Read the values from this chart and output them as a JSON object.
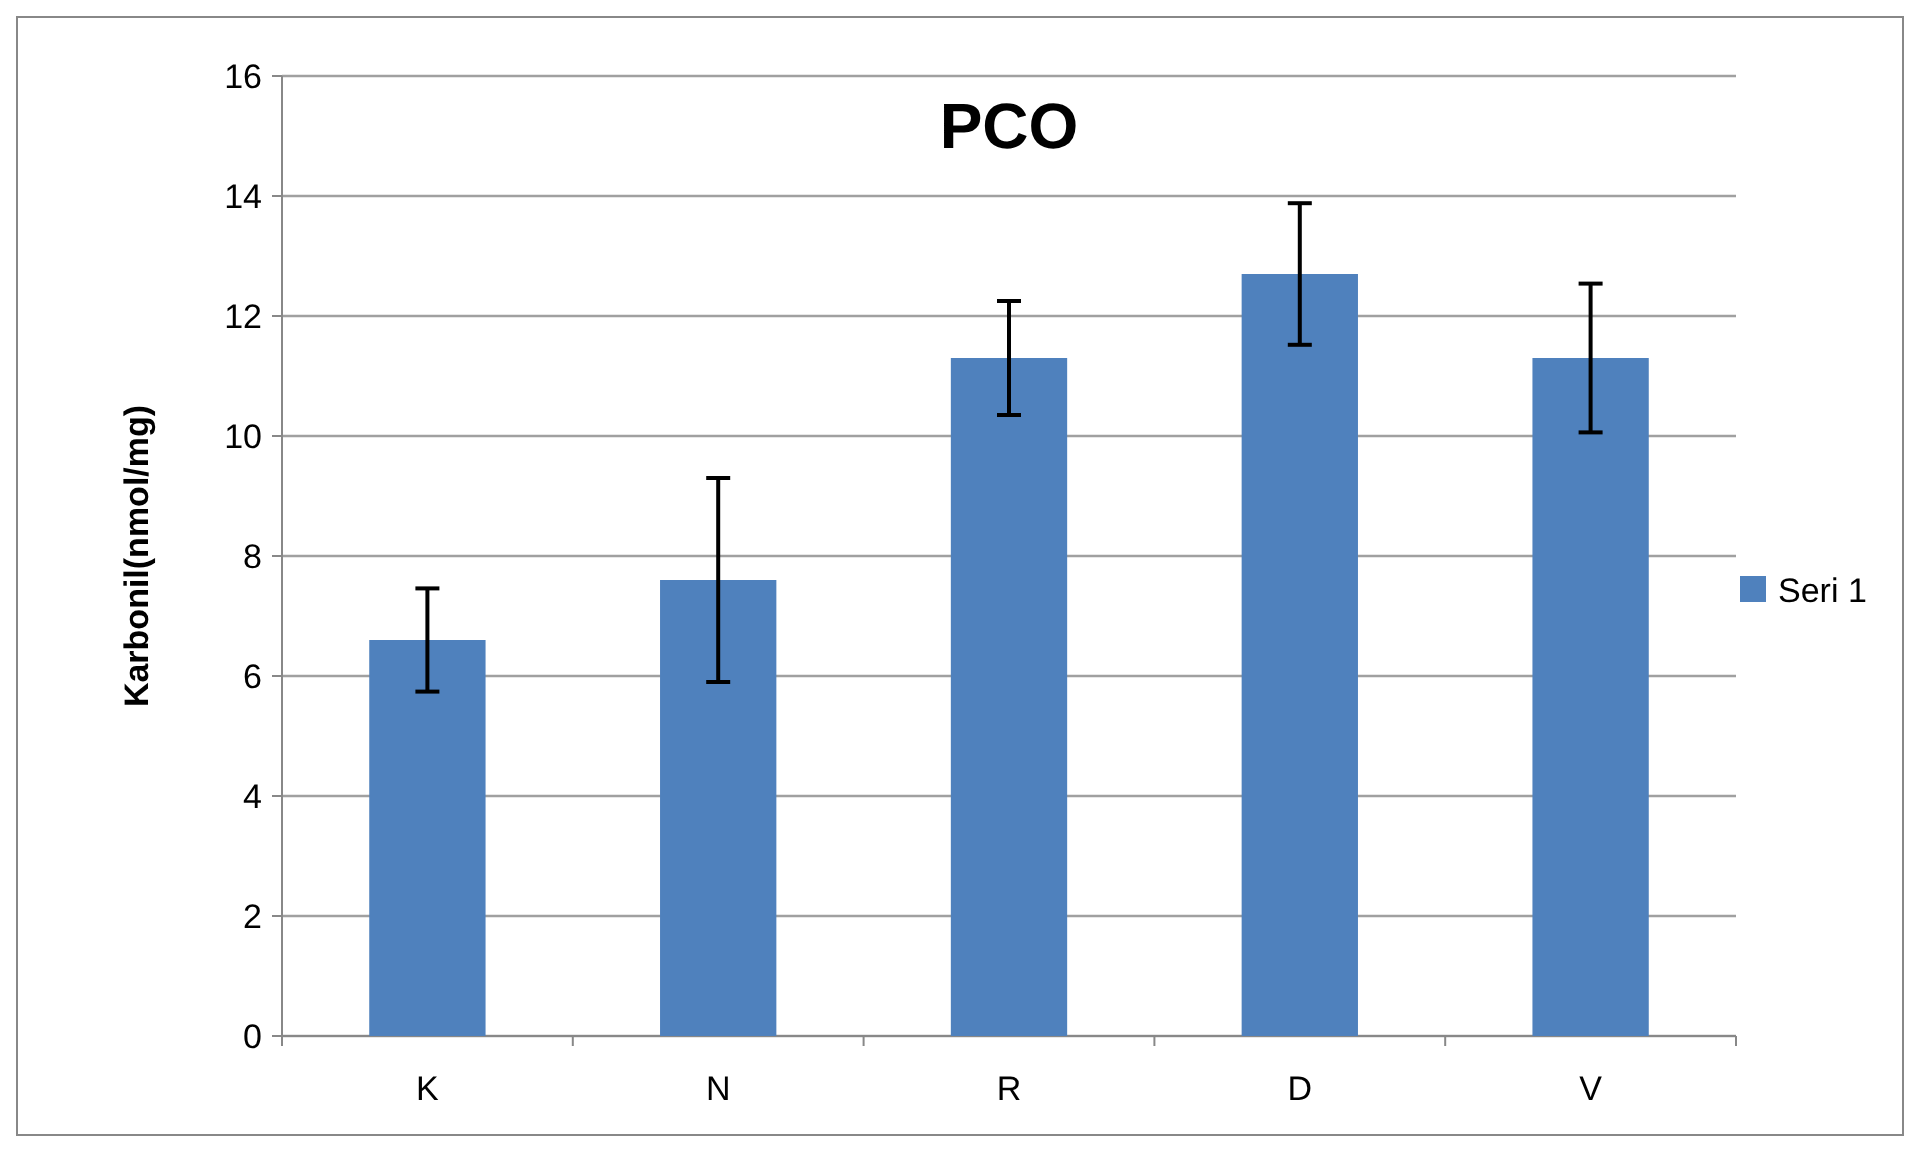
{
  "chart_data": {
    "type": "bar",
    "title": "PCO",
    "ylabel": "Karbonil(nmol/mg)",
    "categories": [
      "K",
      "N",
      "R",
      "D",
      "V"
    ],
    "series": [
      {
        "name": "Seri 1",
        "color": "#4f81bd",
        "values": [
          6.6,
          7.6,
          11.3,
          12.7,
          11.3
        ],
        "errors": [
          0.86,
          1.7,
          0.95,
          1.18,
          1.24
        ]
      }
    ],
    "ylim": [
      0,
      16
    ],
    "yticks": [
      0,
      2,
      4,
      6,
      8,
      10,
      12,
      14,
      16
    ],
    "grid": "y",
    "legend": "right"
  }
}
